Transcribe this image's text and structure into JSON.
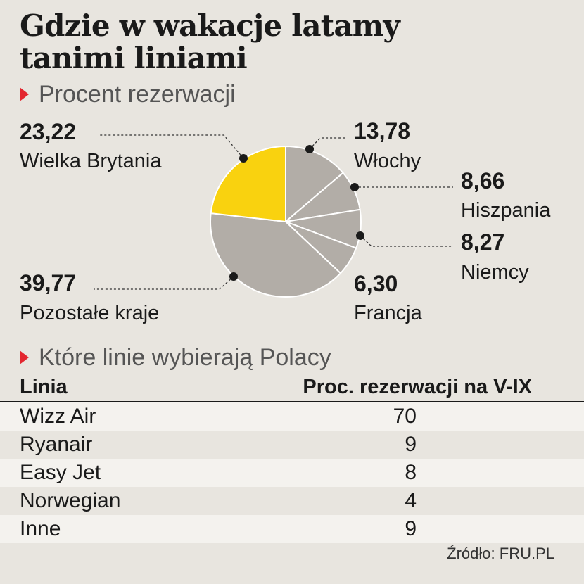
{
  "title_line1": "Gdzie w wakacje latamy",
  "title_line2": "tanimi liniami",
  "section1": "Procent rezerwacji",
  "section2": "Które linie wybierają Polacy",
  "colors": {
    "highlight": "#f9d20f",
    "slice": "#b2ada7",
    "accent": "#e3262f"
  },
  "chart_data": [
    {
      "type": "pie",
      "title": "Procent rezerwacji",
      "slices": [
        {
          "value": "13,78",
          "label": "Włochy",
          "v": 13.78
        },
        {
          "value": "8,66",
          "label": "Hiszpania",
          "v": 8.66
        },
        {
          "value": "8,27",
          "label": "Niemcy",
          "v": 8.27
        },
        {
          "value": "6,30",
          "label": "Francja",
          "v": 6.3
        },
        {
          "value": "39,77",
          "label": "Pozostałe kraje",
          "v": 39.77
        },
        {
          "value": "23,22",
          "label": "Wielka Brytania",
          "v": 23.22,
          "highlight": true
        }
      ]
    },
    {
      "type": "table",
      "title": "Które linie wybierają Polacy",
      "headers": [
        "Linia",
        "Proc. rezerwacji na V-IX"
      ],
      "rows": [
        [
          "Wizz Air",
          "70"
        ],
        [
          "Ryanair",
          "9"
        ],
        [
          "Easy Jet",
          "8"
        ],
        [
          "Norwegian",
          "4"
        ],
        [
          "Inne",
          "9"
        ]
      ]
    }
  ],
  "source": "Źródło: FRU.PL"
}
